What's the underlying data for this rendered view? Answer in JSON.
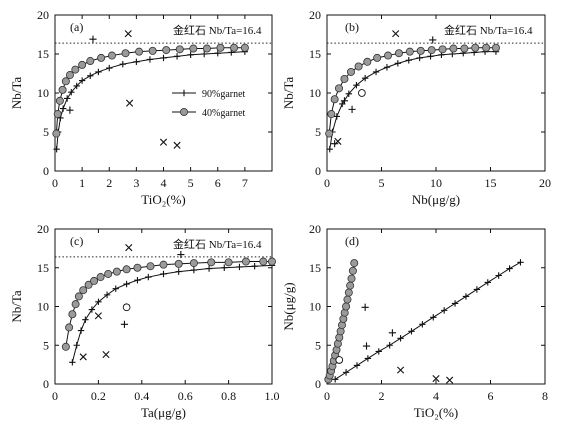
{
  "chart_data": [
    {
      "type": "scatter",
      "panel_label": "(a)",
      "xlabel": "TiO₂(%)",
      "ylabel": "Nb/Ta",
      "xlim": [
        0,
        8
      ],
      "ylim": [
        0,
        20
      ],
      "x_ticks": [
        0,
        1,
        2,
        3,
        4,
        5,
        6,
        7,
        8
      ],
      "x_ticklabels": [
        "0",
        "1",
        "2",
        "3",
        "4",
        "5",
        "6",
        "7",
        ""
      ],
      "y_ticks": [
        0,
        5,
        10,
        15,
        20
      ],
      "y_ticklabels": [
        "0",
        "5",
        "10",
        "15",
        "20"
      ],
      "reference_line": {
        "y": 16.4,
        "label": "金红石 Nb/Ta=16.4",
        "style": "dotted"
      },
      "legend": {
        "position": "center-right",
        "entries": [
          "90%garnet",
          "40%garnet"
        ]
      },
      "series": [
        {
          "name": "90%garnet",
          "marker": "plus-line",
          "x": [
            0.06,
            0.12,
            0.2,
            0.3,
            0.45,
            0.6,
            0.8,
            1.0,
            1.3,
            1.6,
            2.0,
            2.5,
            3.0,
            3.5,
            4.0,
            4.5,
            5.0,
            5.5,
            6.0,
            6.5,
            7.0
          ],
          "y": [
            2.8,
            5.0,
            6.8,
            8.0,
            9.3,
            10.1,
            10.9,
            11.6,
            12.2,
            12.7,
            13.2,
            13.7,
            14.0,
            14.3,
            14.5,
            14.7,
            14.9,
            15.0,
            15.1,
            15.2,
            15.3
          ]
        },
        {
          "name": "40%garnet",
          "marker": "circle-line",
          "x": [
            0.05,
            0.1,
            0.18,
            0.28,
            0.4,
            0.55,
            0.75,
            1.0,
            1.3,
            1.7,
            2.1,
            2.6,
            3.1,
            3.6,
            4.1,
            4.6,
            5.1,
            5.6,
            6.1,
            6.6,
            7.0
          ],
          "y": [
            4.8,
            7.3,
            9.0,
            10.4,
            11.5,
            12.3,
            13.0,
            13.6,
            14.1,
            14.5,
            14.8,
            15.1,
            15.3,
            15.4,
            15.5,
            15.6,
            15.7,
            15.7,
            15.8,
            15.8,
            15.8
          ]
        },
        {
          "name": "",
          "marker": "plus",
          "x": [
            0.55,
            1.4
          ],
          "y": [
            7.8,
            16.9
          ]
        },
        {
          "name": "",
          "marker": "cross",
          "x": [
            2.7,
            2.75,
            4.0,
            4.5
          ],
          "y": [
            17.6,
            8.7,
            3.7,
            3.3
          ]
        }
      ]
    },
    {
      "type": "scatter",
      "panel_label": "(b)",
      "xlabel": "Nb(μg/g)",
      "ylabel": "Nb/Ta",
      "xlim": [
        0,
        20
      ],
      "ylim": [
        0,
        20
      ],
      "x_ticks": [
        0,
        5,
        10,
        15,
        20
      ],
      "x_ticklabels": [
        "0",
        "5",
        "10",
        "15",
        "20"
      ],
      "y_ticks": [
        0,
        5,
        10,
        15,
        20
      ],
      "y_ticklabels": [
        "0",
        "5",
        "10",
        "15",
        "20"
      ],
      "reference_line": {
        "y": 16.4,
        "label": "金红石 Nb/Ta=16.4",
        "style": "dotted"
      },
      "series": [
        {
          "name": "90%garnet",
          "marker": "plus-line",
          "x": [
            0.25,
            0.5,
            0.9,
            1.4,
            2.0,
            2.7,
            3.5,
            4.5,
            5.5,
            6.5,
            7.5,
            8.5,
            9.5,
            10.5,
            11.5,
            12.5,
            13.5,
            14.5,
            15.5
          ],
          "y": [
            2.8,
            5.0,
            7.0,
            8.6,
            9.9,
            11.0,
            11.9,
            12.7,
            13.3,
            13.8,
            14.2,
            14.5,
            14.7,
            14.9,
            15.0,
            15.1,
            15.2,
            15.3,
            15.3
          ]
        },
        {
          "name": "40%garnet",
          "marker": "circle-line",
          "x": [
            0.2,
            0.4,
            0.7,
            1.1,
            1.6,
            2.2,
            2.9,
            3.7,
            4.6,
            5.6,
            6.6,
            7.6,
            8.6,
            9.6,
            10.6,
            11.6,
            12.6,
            13.6,
            14.6,
            15.5
          ],
          "y": [
            4.8,
            7.3,
            9.2,
            10.6,
            11.8,
            12.7,
            13.4,
            14.0,
            14.5,
            14.8,
            15.1,
            15.3,
            15.4,
            15.5,
            15.6,
            15.7,
            15.7,
            15.8,
            15.8,
            15.8
          ]
        },
        {
          "name": "",
          "marker": "plus",
          "x": [
            0.7,
            1.6,
            2.3,
            9.7
          ],
          "y": [
            3.5,
            9.0,
            7.9,
            16.8
          ]
        },
        {
          "name": "",
          "marker": "cross",
          "x": [
            1.0,
            6.3
          ],
          "y": [
            3.8,
            17.6
          ]
        },
        {
          "name": "",
          "marker": "open-circle",
          "x": [
            3.2
          ],
          "y": [
            10.0
          ]
        }
      ]
    },
    {
      "type": "scatter",
      "panel_label": "(c)",
      "xlabel": "Ta(μg/g)",
      "ylabel": "Nb/Ta",
      "xlim": [
        0,
        1.0
      ],
      "ylim": [
        0,
        20
      ],
      "x_ticks": [
        0,
        0.2,
        0.4,
        0.6,
        0.8,
        1.0
      ],
      "x_ticklabels": [
        "0",
        "0.2",
        "0.4",
        "0.6",
        "0.8",
        "1.0"
      ],
      "y_ticks": [
        0,
        5,
        10,
        15,
        20
      ],
      "y_ticklabels": [
        "0",
        "5",
        "10",
        "15",
        "20"
      ],
      "reference_line": {
        "y": 16.4,
        "label": "金红石 Nb/Ta=16.4",
        "style": "dotted"
      },
      "series": [
        {
          "name": "90%garnet",
          "marker": "plus-line",
          "x": [
            0.08,
            0.1,
            0.12,
            0.14,
            0.17,
            0.2,
            0.24,
            0.28,
            0.33,
            0.38,
            0.43,
            0.5,
            0.57,
            0.64,
            0.71,
            0.78,
            0.85,
            0.92,
            1.0
          ],
          "y": [
            2.8,
            5.0,
            6.9,
            8.3,
            9.6,
            10.6,
            11.5,
            12.3,
            12.9,
            13.4,
            13.8,
            14.2,
            14.5,
            14.7,
            14.9,
            15.0,
            15.1,
            15.2,
            15.3
          ]
        },
        {
          "name": "40%garnet",
          "marker": "circle-line",
          "x": [
            0.05,
            0.065,
            0.08,
            0.095,
            0.11,
            0.13,
            0.155,
            0.18,
            0.21,
            0.245,
            0.285,
            0.33,
            0.38,
            0.44,
            0.5,
            0.57,
            0.64,
            0.72,
            0.8,
            0.88,
            0.96,
            1.0
          ],
          "y": [
            4.8,
            7.3,
            9.0,
            10.3,
            11.3,
            12.1,
            12.8,
            13.3,
            13.8,
            14.2,
            14.5,
            14.8,
            15.0,
            15.2,
            15.4,
            15.5,
            15.6,
            15.7,
            15.7,
            15.8,
            15.8,
            15.8
          ]
        },
        {
          "name": "",
          "marker": "plus",
          "x": [
            0.32,
            0.58
          ],
          "y": [
            7.7,
            16.7
          ]
        },
        {
          "name": "",
          "marker": "cross",
          "x": [
            0.13,
            0.2,
            0.235,
            0.34
          ],
          "y": [
            3.5,
            8.8,
            3.8,
            17.6
          ]
        },
        {
          "name": "",
          "marker": "open-circle",
          "x": [
            0.33
          ],
          "y": [
            9.9
          ]
        }
      ]
    },
    {
      "type": "scatter",
      "panel_label": "(d)",
      "xlabel": "TiO₂(%)",
      "ylabel": "Nb(μg/g)",
      "xlim": [
        0,
        8
      ],
      "ylim": [
        0,
        20
      ],
      "x_ticks": [
        0,
        2,
        4,
        6,
        8
      ],
      "x_ticklabels": [
        "0",
        "2",
        "4",
        "6",
        "8"
      ],
      "y_ticks": [
        0,
        5,
        10,
        15,
        20
      ],
      "y_ticklabels": [
        "0",
        "5",
        "10",
        "15",
        "20"
      ],
      "series": [
        {
          "name": "90%garnet",
          "marker": "plus-line",
          "x": [
            0.3,
            0.7,
            1.1,
            1.5,
            1.9,
            2.3,
            2.7,
            3.1,
            3.5,
            3.9,
            4.3,
            4.7,
            5.1,
            5.5,
            5.9,
            6.3,
            6.7,
            7.1
          ],
          "y": [
            0.6,
            1.5,
            2.4,
            3.3,
            4.2,
            5.0,
            5.9,
            6.8,
            7.7,
            8.6,
            9.5,
            10.4,
            11.3,
            12.2,
            13.1,
            14.0,
            14.9,
            15.7
          ]
        },
        {
          "name": "40%garnet",
          "marker": "circle-line",
          "x": [
            0.05,
            0.1,
            0.15,
            0.2,
            0.25,
            0.3,
            0.35,
            0.4,
            0.45,
            0.5,
            0.55,
            0.6,
            0.65,
            0.7,
            0.75,
            0.8,
            0.85,
            0.9,
            0.95,
            1.0
          ],
          "y": [
            0.6,
            1.1,
            1.7,
            2.3,
            3.0,
            3.7,
            4.4,
            5.2,
            6.0,
            6.8,
            7.6,
            8.4,
            9.2,
            10.0,
            10.9,
            11.8,
            12.7,
            13.6,
            14.6,
            15.6
          ]
        },
        {
          "name": "",
          "marker": "plus",
          "x": [
            1.4,
            1.45,
            2.4
          ],
          "y": [
            9.9,
            4.9,
            6.6
          ]
        },
        {
          "name": "",
          "marker": "cross",
          "x": [
            2.7,
            4.0,
            4.5
          ],
          "y": [
            1.8,
            0.7,
            0.5
          ]
        },
        {
          "name": "",
          "marker": "open-circle",
          "x": [
            0.45
          ],
          "y": [
            3.1
          ]
        }
      ]
    }
  ]
}
